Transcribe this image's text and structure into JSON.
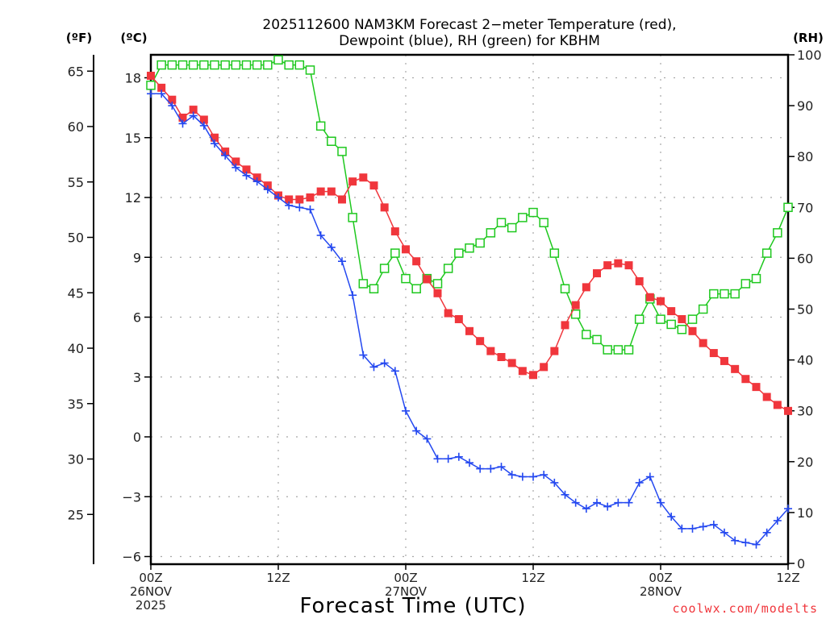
{
  "chart_data": {
    "type": "line",
    "title_lines": [
      "2025112600 NAM3KM Forecast 2−meter Temperature (red),",
      "Dewpoint (blue), RH (green) for KBHM"
    ],
    "xlabel": "Forecast Time (UTC)",
    "x_unit": "hours since 00Z 26NOV 2025",
    "x": [
      0,
      1,
      2,
      3,
      4,
      5,
      6,
      7,
      8,
      9,
      10,
      11,
      12,
      13,
      14,
      15,
      16,
      17,
      18,
      19,
      20,
      21,
      22,
      23,
      24,
      25,
      26,
      27,
      28,
      29,
      30,
      31,
      32,
      33,
      34,
      35,
      36,
      37,
      38,
      39,
      40,
      41,
      42,
      43,
      44,
      45,
      46,
      47,
      48,
      49,
      50,
      51,
      52,
      53,
      54,
      55,
      56,
      57,
      58,
      59,
      60
    ],
    "xlim": [
      0,
      60
    ],
    "x_ticks": [
      {
        "hour": 0,
        "lines": [
          "00Z",
          "26NOV",
          "2025"
        ]
      },
      {
        "hour": 12,
        "lines": [
          "12Z"
        ]
      },
      {
        "hour": 24,
        "lines": [
          "00Z",
          "27NOV"
        ]
      },
      {
        "hour": 36,
        "lines": [
          "12Z"
        ]
      },
      {
        "hour": 48,
        "lines": [
          "00Z",
          "28NOV"
        ]
      },
      {
        "hour": 60,
        "lines": [
          "12Z"
        ]
      }
    ],
    "y_left_c": {
      "label": "(ºC)",
      "ylim": [
        -6.5,
        19.1
      ],
      "ticks": [
        18,
        15,
        12,
        9,
        6,
        3,
        0,
        -3,
        -6
      ],
      "tick_labels": [
        "18",
        "15",
        "12",
        "9",
        "6",
        "3",
        "0",
        "−3",
        "−6"
      ]
    },
    "y_left_f": {
      "label": "(ºF)",
      "ticks": [
        65,
        60,
        55,
        50,
        45,
        40,
        35,
        30,
        25
      ],
      "tick_labels": [
        "65",
        "60",
        "55",
        "50",
        "45",
        "40",
        "35",
        "30",
        "25"
      ]
    },
    "y_right_rh": {
      "label": "(RH)",
      "ylim": [
        0,
        100
      ],
      "ticks": [
        100,
        90,
        80,
        70,
        60,
        50,
        40,
        30,
        20,
        10,
        0
      ],
      "tick_labels": [
        "100",
        "90",
        "80",
        "70",
        "60",
        "50",
        "40",
        "30",
        "20",
        "10",
        "0"
      ]
    },
    "grid": true,
    "series": [
      {
        "name": "Temperature",
        "axis": "celsius",
        "color": "#f0363c",
        "marker": "filled-square",
        "values": [
          18.1,
          17.5,
          16.9,
          16.0,
          16.4,
          15.9,
          15.0,
          14.3,
          13.8,
          13.4,
          13.0,
          12.6,
          12.1,
          11.9,
          11.9,
          12.0,
          12.3,
          12.3,
          11.9,
          12.8,
          13.0,
          12.6,
          11.5,
          10.3,
          9.4,
          8.8,
          7.9,
          7.2,
          6.2,
          5.9,
          5.3,
          4.8,
          4.3,
          4.0,
          3.7,
          3.3,
          3.1,
          3.5,
          4.3,
          5.6,
          6.6,
          7.5,
          8.2,
          8.6,
          8.7,
          8.6,
          7.8,
          7.0,
          6.8,
          6.3,
          5.9,
          5.3,
          4.7,
          4.2,
          3.8,
          3.4,
          2.9,
          2.5,
          2.0,
          1.6,
          1.3
        ]
      },
      {
        "name": "Dewpoint",
        "axis": "celsius",
        "color": "#2448f0",
        "marker": "plus",
        "values": [
          17.2,
          17.2,
          16.6,
          15.7,
          16.1,
          15.6,
          14.7,
          14.1,
          13.5,
          13.1,
          12.8,
          12.4,
          12.0,
          11.6,
          11.5,
          11.4,
          10.1,
          9.5,
          8.8,
          7.1,
          4.1,
          3.5,
          3.7,
          3.3,
          1.3,
          0.3,
          -0.1,
          -1.1,
          -1.1,
          -1.0,
          -1.3,
          -1.6,
          -1.6,
          -1.5,
          -1.9,
          -2.0,
          -2.0,
          -1.9,
          -2.3,
          -2.9,
          -3.3,
          -3.6,
          -3.3,
          -3.5,
          -3.3,
          -3.3,
          -2.3,
          -2.0,
          -3.3,
          -4.0,
          -4.6,
          -4.6,
          -4.5,
          -4.4,
          -4.8,
          -5.2,
          -5.3,
          -5.4,
          -4.8,
          -4.2,
          -3.6
        ]
      },
      {
        "name": "RH",
        "axis": "rh",
        "color": "#1ec81e",
        "marker": "open-square",
        "values": [
          94,
          98,
          98,
          98,
          98,
          98,
          98,
          98,
          98,
          98,
          98,
          98,
          99,
          98,
          98,
          97,
          86,
          83,
          81,
          68,
          55,
          54,
          58,
          61,
          56,
          54,
          56,
          55,
          58,
          61,
          62,
          63,
          65,
          67,
          66,
          68,
          69,
          67,
          61,
          54,
          49,
          45,
          44,
          42,
          42,
          42,
          48,
          52,
          48,
          47,
          46,
          48,
          50,
          53,
          53,
          53,
          55,
          56,
          61,
          65,
          70
        ]
      }
    ]
  },
  "credit": "coolwx.com/modelts",
  "colors": {
    "temperature": "#f0363c",
    "dewpoint": "#2448f0",
    "rh": "#1ec81e",
    "credit": "#f0363c",
    "grid": "#a8a8a8"
  }
}
